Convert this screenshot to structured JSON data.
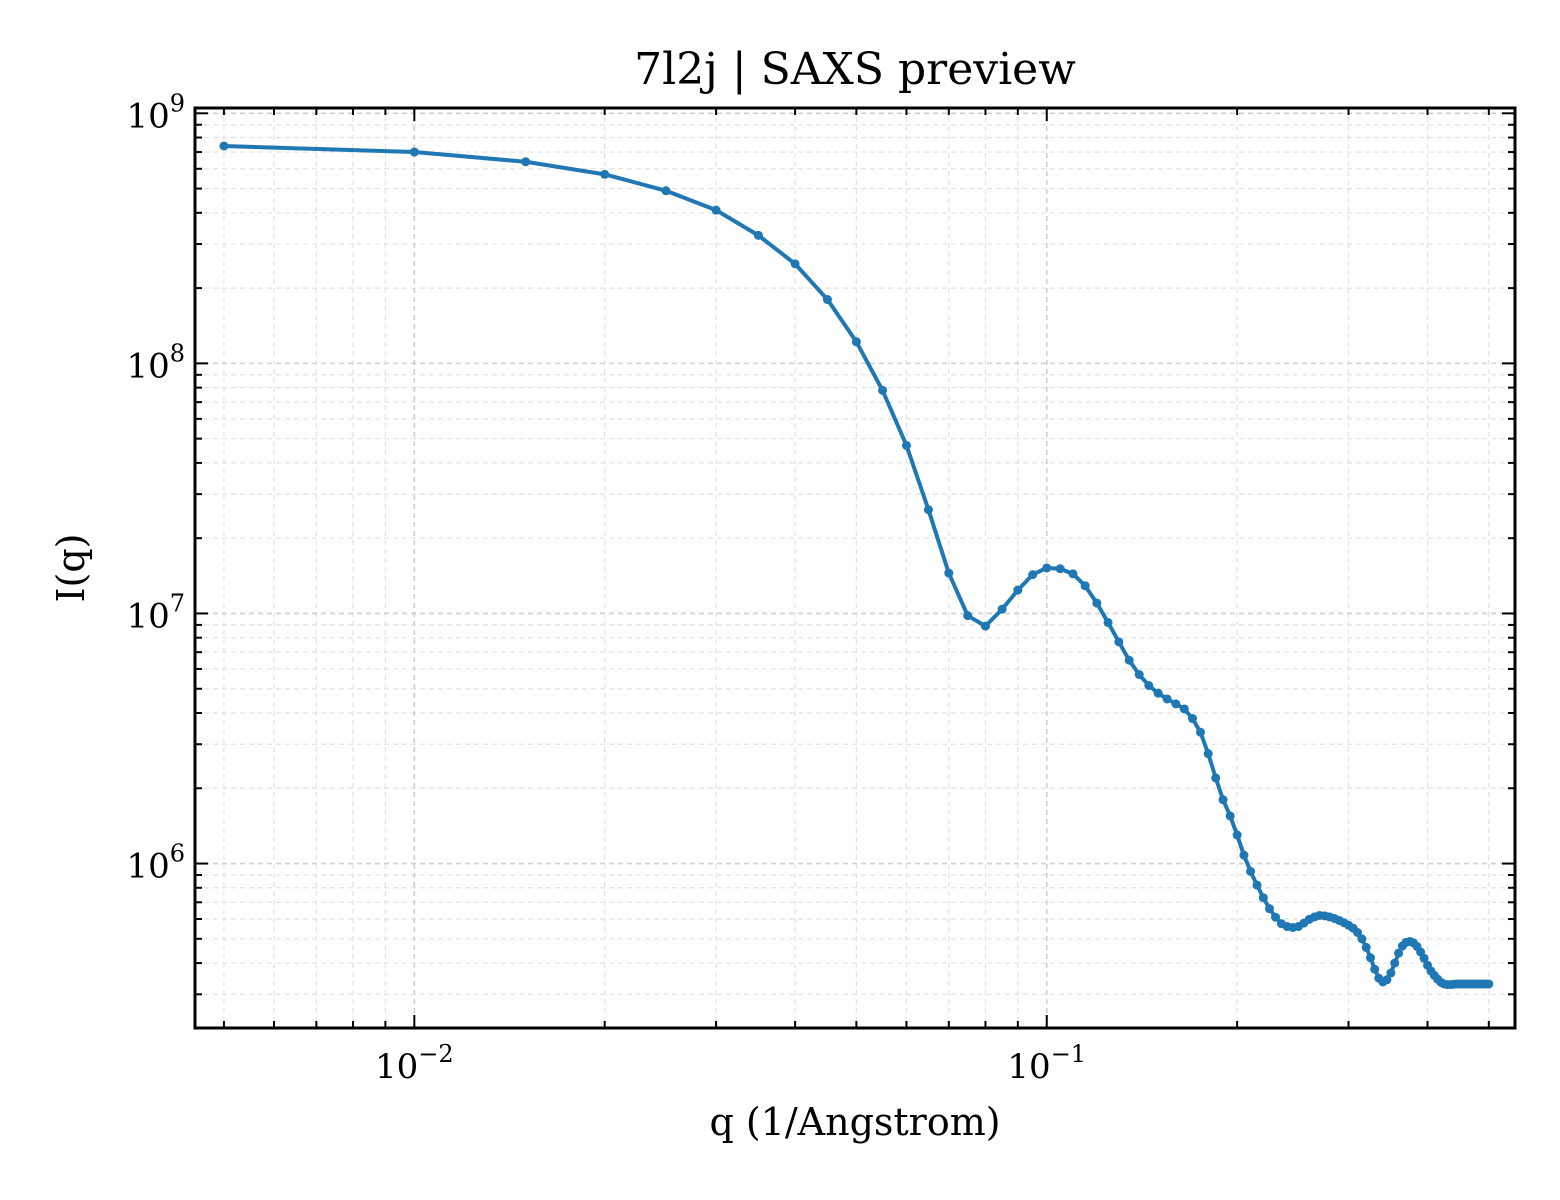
{
  "chart_data": {
    "type": "line",
    "title": "7l2j | SAXS preview",
    "xlabel": "q (1/Angstrom)",
    "ylabel": "I(q)",
    "xscale": "log",
    "yscale": "log",
    "xlim": [
      0.0045,
      0.55
    ],
    "ylim": [
      220000,
      1050000000
    ],
    "grid": true,
    "legend": "none",
    "color": "#1f77b4",
    "xticks": [
      {
        "value": 0.01,
        "base": "10",
        "exp": "−2"
      },
      {
        "value": 0.1,
        "base": "10",
        "exp": "−1"
      }
    ],
    "yticks": [
      {
        "value": 1000000,
        "base": "10",
        "exp": "6"
      },
      {
        "value": 10000000,
        "base": "10",
        "exp": "7"
      },
      {
        "value": 100000000,
        "base": "10",
        "exp": "8"
      },
      {
        "value": 1000000000,
        "base": "10",
        "exp": "9"
      }
    ],
    "series": [
      {
        "x": [
          0.005,
          0.01,
          0.015,
          0.02,
          0.025,
          0.03,
          0.035,
          0.04,
          0.045,
          0.05,
          0.055,
          0.06,
          0.065,
          0.07,
          0.075,
          0.08,
          0.085,
          0.09,
          0.095,
          0.1,
          0.105,
          0.11,
          0.115,
          0.12,
          0.125,
          0.13,
          0.135,
          0.14,
          0.145,
          0.15,
          0.155,
          0.16,
          0.165,
          0.17,
          0.175,
          0.18,
          0.185,
          0.19,
          0.195,
          0.2,
          0.205,
          0.21,
          0.215,
          0.22,
          0.225,
          0.23,
          0.235,
          0.24,
          0.245,
          0.25,
          0.255,
          0.26,
          0.265,
          0.27,
          0.275,
          0.28,
          0.285,
          0.29,
          0.295,
          0.3,
          0.305,
          0.31,
          0.315,
          0.32,
          0.325,
          0.33,
          0.335,
          0.34,
          0.345,
          0.35,
          0.355,
          0.36,
          0.365,
          0.37,
          0.375,
          0.38,
          0.385,
          0.39,
          0.395,
          0.4,
          0.405,
          0.41,
          0.415,
          0.42,
          0.425,
          0.43,
          0.435,
          0.44,
          0.445,
          0.45,
          0.455,
          0.46,
          0.465,
          0.47,
          0.475,
          0.48,
          0.485,
          0.49,
          0.495,
          0.5
        ],
        "y": [
          740000000,
          700000000,
          640000000,
          570000000,
          490000000,
          410000000,
          325000000,
          250000000,
          180000000,
          122000000,
          78000000,
          47000000,
          26000000,
          14500000,
          9800000,
          8900000,
          10400000,
          12400000,
          14300000,
          15200000,
          15100000,
          14400000,
          12900000,
          11000000,
          9200000,
          7700000,
          6500000,
          5700000,
          5150000,
          4800000,
          4550000,
          4350000,
          4150000,
          3800000,
          3350000,
          2750000,
          2200000,
          1800000,
          1550000,
          1300000,
          1080000,
          930000,
          820000,
          730000,
          660000,
          610000,
          575000,
          560000,
          555000,
          560000,
          578000,
          598000,
          612000,
          620000,
          618000,
          612000,
          603000,
          592000,
          580000,
          567000,
          552000,
          530000,
          500000,
          462000,
          420000,
          378000,
          348000,
          336000,
          343000,
          365000,
          400000,
          438000,
          468000,
          484000,
          488000,
          482000,
          466000,
          443000,
          418000,
          392000,
          372000,
          357000,
          345000,
          335000,
          330000,
          328000,
          328000,
          329000,
          330000,
          330000,
          330000,
          330000,
          330000,
          330000,
          330000,
          330000,
          330000,
          330000,
          330000,
          330000
        ]
      }
    ]
  }
}
